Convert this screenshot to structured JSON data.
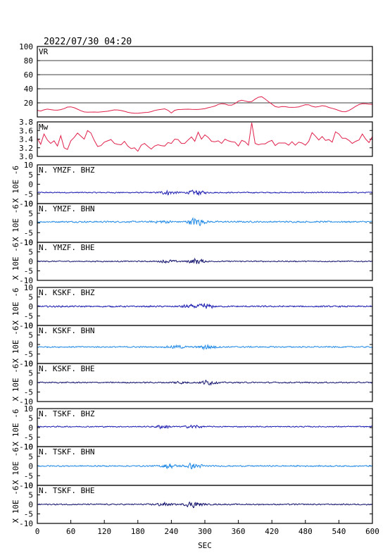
{
  "header": {
    "timestamp": "2022/07/30 04:20"
  },
  "colors": {
    "frame": "#000000",
    "vr": "#e0204a",
    "mw": "#e0204a",
    "dark_blue": "#1a1ab0",
    "light_blue": "#1e88e5",
    "navy": "#14146e"
  },
  "chart_data": {
    "type": "line",
    "xlabel": "SEC",
    "xlim": [
      0,
      600
    ],
    "xticks": [
      "0",
      "60",
      "120",
      "180",
      "240",
      "300",
      "360",
      "420",
      "480",
      "540",
      "600"
    ],
    "panels": [
      {
        "id": "vr",
        "label": "VR",
        "kind": "vr",
        "ylim": [
          0,
          100
        ],
        "yticks": [
          "100",
          "80",
          "60",
          "40",
          "20"
        ],
        "grid": true,
        "values": [
          9.4,
          8.4,
          10.1,
          11.1,
          10.4,
          9.7,
          9.6,
          10.4,
          11.8,
          14.0,
          14.3,
          13.1,
          11.0,
          8.8,
          7.1,
          6.8,
          6.9,
          7.0,
          6.7,
          7.1,
          7.6,
          8.1,
          9.1,
          10.0,
          9.9,
          9.1,
          8.0,
          6.6,
          5.8,
          5.3,
          5.2,
          5.7,
          6.3,
          6.5,
          7.5,
          9.2,
          10.1,
          10.8,
          11.5,
          9.5,
          5.6,
          9.4,
          10.5,
          10.6,
          10.9,
          11.0,
          10.7,
          10.6,
          10.6,
          11.1,
          11.8,
          13.1,
          14.2,
          15.5,
          17.7,
          18.8,
          18.4,
          16.8,
          16.7,
          18.9,
          22.4,
          23.7,
          22.7,
          21.4,
          21.9,
          25.3,
          28.0,
          28.7,
          25.4,
          21.6,
          18.2,
          14.7,
          13.7,
          14.7,
          14.6,
          13.8,
          13.6,
          13.8,
          14.3,
          15.8,
          17.4,
          17.3,
          15.1,
          14.0,
          14.7,
          16.0,
          15.3,
          13.5,
          12.2,
          10.9,
          9.1,
          7.5,
          7.4,
          9.2,
          11.9,
          15.1,
          17.6,
          18.9,
          18.8,
          18.1,
          17.8
        ]
      },
      {
        "id": "mw",
        "label": "Mw",
        "kind": "mw",
        "ylim": [
          3.0,
          3.8
        ],
        "yticks": [
          "3.8",
          "3.6",
          "3.4",
          "3.2",
          "3.0"
        ],
        "grid": false,
        "values": [
          3.42,
          3.28,
          3.52,
          3.38,
          3.3,
          3.36,
          3.24,
          3.48,
          3.2,
          3.16,
          3.36,
          3.44,
          3.54,
          3.47,
          3.4,
          3.6,
          3.54,
          3.37,
          3.23,
          3.25,
          3.33,
          3.36,
          3.39,
          3.3,
          3.28,
          3.27,
          3.35,
          3.24,
          3.18,
          3.2,
          3.12,
          3.26,
          3.3,
          3.23,
          3.17,
          3.24,
          3.27,
          3.25,
          3.24,
          3.32,
          3.3,
          3.4,
          3.39,
          3.3,
          3.3,
          3.38,
          3.45,
          3.35,
          3.56,
          3.4,
          3.5,
          3.44,
          3.35,
          3.34,
          3.36,
          3.3,
          3.4,
          3.36,
          3.34,
          3.33,
          3.24,
          3.37,
          3.34,
          3.26,
          3.78,
          3.3,
          3.27,
          3.29,
          3.29,
          3.34,
          3.37,
          3.25,
          3.31,
          3.31,
          3.31,
          3.26,
          3.34,
          3.26,
          3.33,
          3.31,
          3.26,
          3.35,
          3.55,
          3.47,
          3.38,
          3.46,
          3.37,
          3.39,
          3.33,
          3.57,
          3.52,
          3.42,
          3.42,
          3.37,
          3.3,
          3.35,
          3.38,
          3.52,
          3.4,
          3.32,
          3.46
        ]
      },
      {
        "id": "ymzf-bhz",
        "label": "N. YMZF. BHZ",
        "kind": "wave",
        "color": "dark_blue",
        "offset": -4.3,
        "amp": 0.35,
        "bursts": [
          [
            235,
            1.1
          ],
          [
            285,
            1.4
          ]
        ]
      },
      {
        "id": "ymzf-bhn",
        "label": "N. YMZF. BHN",
        "kind": "wave",
        "color": "light_blue",
        "offset": 0.6,
        "amp": 0.45,
        "bursts": [
          [
            225,
            0.7
          ],
          [
            285,
            2.4
          ]
        ]
      },
      {
        "id": "ymzf-bhe",
        "label": "N. YMZF. BHE",
        "kind": "wave",
        "color": "navy",
        "offset": 0.0,
        "amp": 0.35,
        "bursts": [
          [
            235,
            0.8
          ],
          [
            285,
            1.6
          ]
        ]
      },
      {
        "id": "kskf-bhz",
        "label": "N. KSKF. BHZ",
        "kind": "wave",
        "color": "dark_blue",
        "offset": 0.0,
        "amp": 0.45,
        "bursts": [
          [
            270,
            0.8
          ],
          [
            300,
            1.4
          ]
        ]
      },
      {
        "id": "kskf-bhn",
        "label": "N. KSKF. BHN",
        "kind": "wave",
        "color": "light_blue",
        "offset": -1.3,
        "amp": 0.4,
        "bursts": [
          [
            250,
            0.9
          ],
          [
            305,
            1.5
          ]
        ]
      },
      {
        "id": "kskf-bhe",
        "label": "N. KSKF. BHE",
        "kind": "wave",
        "color": "navy",
        "offset": 0.0,
        "amp": 0.4,
        "bursts": [
          [
            255,
            0.7
          ],
          [
            305,
            1.2
          ]
        ]
      },
      {
        "id": "tskf-bhz",
        "label": "N. TSKF. BHZ",
        "kind": "wave",
        "color": "dark_blue",
        "offset": 0.5,
        "amp": 0.35,
        "bursts": [
          [
            225,
            1.0
          ],
          [
            280,
            0.9
          ]
        ]
      },
      {
        "id": "tskf-bhn",
        "label": "N. TSKF. BHN",
        "kind": "wave",
        "color": "light_blue",
        "offset": 0.0,
        "amp": 0.4,
        "bursts": [
          [
            235,
            1.2
          ],
          [
            280,
            1.6
          ]
        ]
      },
      {
        "id": "tskf-bhe",
        "label": "N. TSKF. BHE",
        "kind": "wave",
        "color": "navy",
        "offset": 0.0,
        "amp": 0.4,
        "bursts": [
          [
            225,
            0.9
          ],
          [
            280,
            1.8
          ]
        ]
      }
    ],
    "wave_ylim": [
      -10,
      10
    ],
    "wave_yticks": [
      "10",
      "5",
      "0",
      "-5",
      "-10"
    ],
    "wave_ylabel": "X 10E -6"
  }
}
